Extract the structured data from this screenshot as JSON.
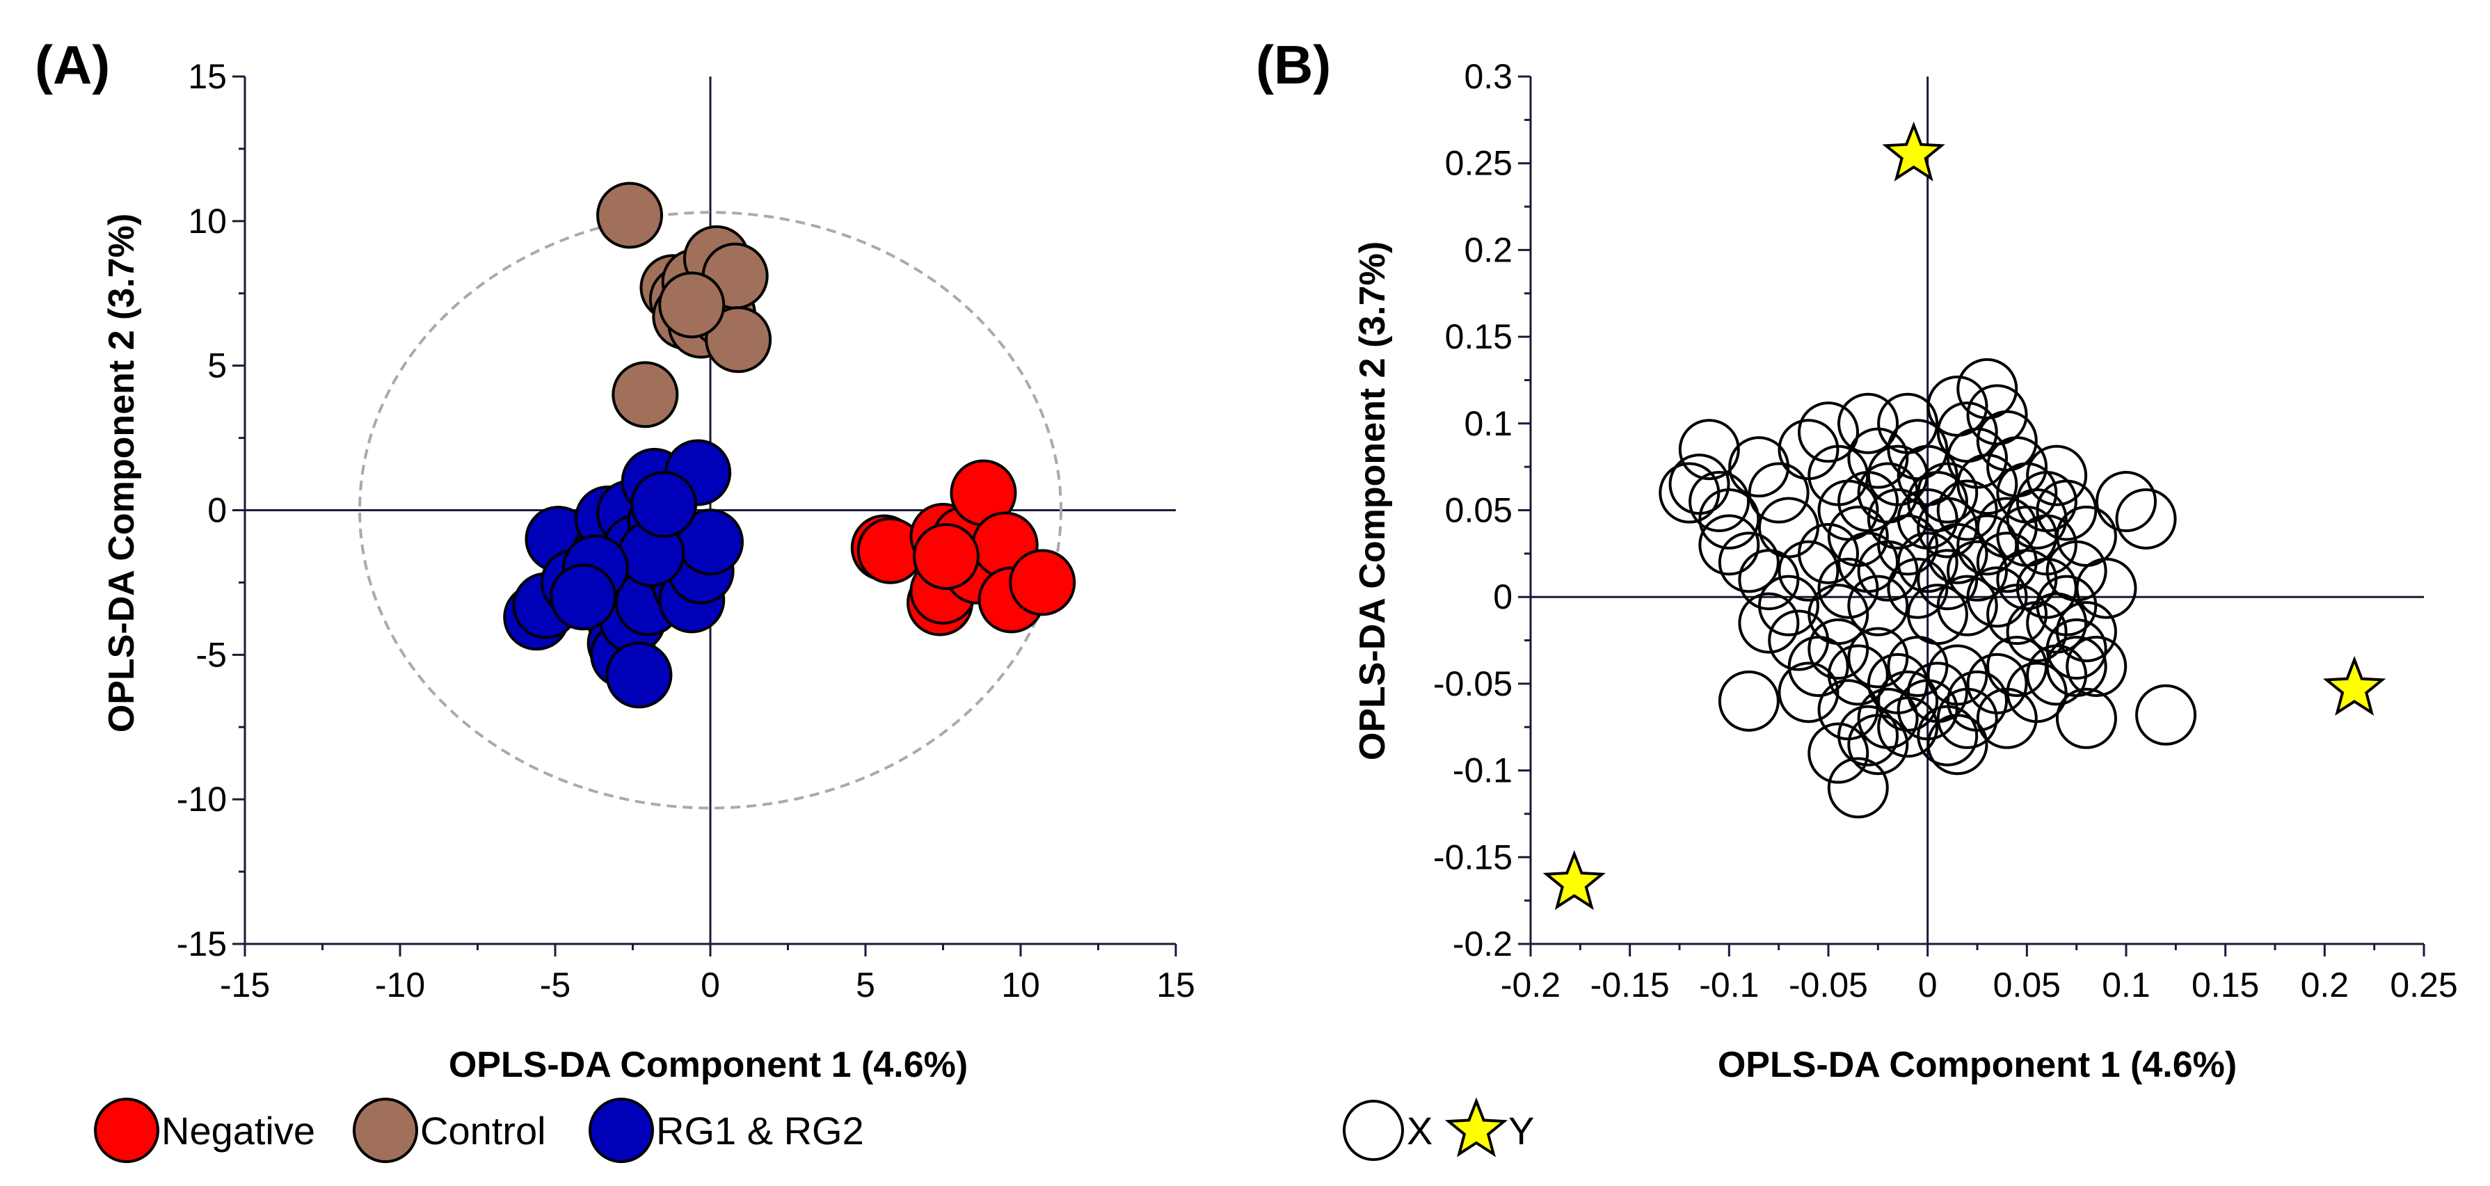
{
  "chart_data": [
    {
      "type": "scatter",
      "panel_label": "(A)",
      "xlabel": "OPLS-DA Component 1 (4.6%)",
      "ylabel": "OPLS-DA Component 2 (3.7%)",
      "xlim": [
        -15,
        15
      ],
      "ylim": [
        -15,
        15
      ],
      "xticks": [
        -15,
        -10,
        -5,
        0,
        5,
        10,
        15
      ],
      "yticks": [
        -15,
        -10,
        -5,
        0,
        5,
        10,
        15
      ],
      "xtick_labels": [
        "-15",
        "-10",
        "-5",
        "0",
        "5",
        "10",
        "15"
      ],
      "ytick_labels": [
        "-15",
        "-10",
        "-5",
        "0",
        "5",
        "10",
        "15"
      ],
      "ellipse": {
        "cx": 0,
        "cy": 0,
        "rx": 11.3,
        "ry": 10.3,
        "style": "dashed",
        "color": "#aaaaaa"
      },
      "series": [
        {
          "name": "Negative",
          "color": "#ff0000",
          "points": [
            [
              5.6,
              -1.3
            ],
            [
              5.8,
              -1.4
            ],
            [
              7.4,
              -3.2
            ],
            [
              7.5,
              -2.8
            ],
            [
              7.5,
              -0.9
            ],
            [
              8.2,
              -1.0
            ],
            [
              8.6,
              -2.1
            ],
            [
              8.8,
              0.6
            ],
            [
              9.5,
              -1.2
            ],
            [
              9.7,
              -3.1
            ],
            [
              10.7,
              -2.5
            ],
            [
              7.6,
              -1.6
            ]
          ]
        },
        {
          "name": "Control",
          "color": "#a0705a",
          "points": [
            [
              -2.6,
              10.2
            ],
            [
              -1.2,
              7.7
            ],
            [
              -0.9,
              7.3
            ],
            [
              -0.8,
              6.7
            ],
            [
              -0.5,
              7.9
            ],
            [
              -0.3,
              6.4
            ],
            [
              0.2,
              8.7
            ],
            [
              0.4,
              6.8
            ],
            [
              0.8,
              8.1
            ],
            [
              0.9,
              5.9
            ],
            [
              -2.1,
              4.0
            ],
            [
              -0.6,
              7.1
            ]
          ]
        },
        {
          "name": "RG1 & RG2",
          "color": "#0000b8",
          "points": [
            [
              -5.6,
              -3.7
            ],
            [
              -5.3,
              -3.3
            ],
            [
              -4.9,
              -1.0
            ],
            [
              -4.4,
              -2.5
            ],
            [
              -3.4,
              -1.5
            ],
            [
              -3.3,
              -0.3
            ],
            [
              -3.1,
              -2.8
            ],
            [
              -3.0,
              -3.6
            ],
            [
              -2.9,
              -4.6
            ],
            [
              -2.8,
              -5.0
            ],
            [
              -2.7,
              -2.2
            ],
            [
              -2.6,
              -0.1
            ],
            [
              -2.5,
              -3.8
            ],
            [
              -2.4,
              -1.3
            ],
            [
              -2.3,
              -5.7
            ],
            [
              -2.2,
              -2.6
            ],
            [
              -2.0,
              -3.2
            ],
            [
              -1.8,
              1.0
            ],
            [
              -1.6,
              -0.4
            ],
            [
              -1.3,
              -0.9
            ],
            [
              -1.1,
              -2.0
            ],
            [
              -0.8,
              -2.6
            ],
            [
              -0.6,
              -3.1
            ],
            [
              -0.4,
              1.3
            ],
            [
              -0.3,
              -2.1
            ],
            [
              0.0,
              -1.1
            ],
            [
              -1.9,
              -1.5
            ],
            [
              -3.7,
              -2.0
            ],
            [
              -4.1,
              -3.0
            ],
            [
              -1.5,
              0.2
            ]
          ]
        }
      ],
      "legend": [
        {
          "label": "Negative",
          "color": "#ff0000",
          "marker": "circle"
        },
        {
          "label": "Control",
          "color": "#a0705a",
          "marker": "circle"
        },
        {
          "label": "RG1 & RG2",
          "color": "#0000b8",
          "marker": "circle"
        }
      ]
    },
    {
      "type": "scatter",
      "panel_label": "(B)",
      "xlabel": "OPLS-DA Component 1 (4.6%)",
      "ylabel": "OPLS-DA Component 2 (3.7%)",
      "xlim": [
        -0.2,
        0.25
      ],
      "ylim": [
        -0.2,
        0.3
      ],
      "xticks": [
        -0.2,
        -0.15,
        -0.1,
        -0.05,
        0,
        0.05,
        0.1,
        0.15,
        0.2,
        0.25
      ],
      "yticks": [
        -0.2,
        -0.15,
        -0.1,
        -0.05,
        0,
        0.05,
        0.1,
        0.15,
        0.2,
        0.25,
        0.3
      ],
      "xtick_labels": [
        "-0.2",
        "-0.15",
        "-0.1",
        "-0.05",
        "0",
        "0.05",
        "0.1",
        "0.15",
        "0.2",
        "0.25"
      ],
      "ytick_labels": [
        "-0.2",
        "-0.15",
        "-0.1",
        "-0.05",
        "0",
        "0.05",
        "0.1",
        "0.15",
        "0.2",
        "0.25",
        "0.3"
      ],
      "series": [
        {
          "name": "X",
          "marker": "open-circle",
          "color": "#000000",
          "points": [
            [
              -0.11,
              0.085
            ],
            [
              -0.115,
              0.065
            ],
            [
              -0.105,
              0.055
            ],
            [
              -0.1,
              0.045
            ],
            [
              -0.085,
              0.075
            ],
            [
              -0.075,
              0.06
            ],
            [
              -0.07,
              0.04
            ],
            [
              -0.06,
              0.085
            ],
            [
              -0.05,
              0.095
            ],
            [
              -0.045,
              0.07
            ],
            [
              -0.04,
              0.05
            ],
            [
              -0.035,
              0.035
            ],
            [
              -0.03,
              0.1
            ],
            [
              -0.025,
              0.08
            ],
            [
              -0.02,
              0.06
            ],
            [
              -0.015,
              0.045
            ],
            [
              -0.01,
              0.1
            ],
            [
              -0.005,
              0.085
            ],
            [
              0.0,
              0.07
            ],
            [
              0.005,
              0.055
            ],
            [
              0.01,
              0.04
            ],
            [
              0.015,
              0.11
            ],
            [
              0.02,
              0.095
            ],
            [
              0.025,
              0.08
            ],
            [
              0.03,
              0.12
            ],
            [
              0.035,
              0.105
            ],
            [
              0.04,
              0.09
            ],
            [
              0.045,
              0.075
            ],
            [
              0.05,
              0.06
            ],
            [
              0.055,
              0.045
            ],
            [
              0.06,
              0.03
            ],
            [
              0.065,
              0.07
            ],
            [
              0.07,
              0.05
            ],
            [
              0.08,
              0.035
            ],
            [
              0.075,
              0.015
            ],
            [
              -0.09,
              0.02
            ],
            [
              -0.08,
              0.01
            ],
            [
              -0.07,
              -0.005
            ],
            [
              -0.06,
              0.015
            ],
            [
              -0.05,
              0.025
            ],
            [
              -0.045,
              -0.01
            ],
            [
              -0.04,
              0.005
            ],
            [
              -0.03,
              0.02
            ],
            [
              -0.025,
              -0.005
            ],
            [
              -0.02,
              0.015
            ],
            [
              -0.01,
              0.03
            ],
            [
              -0.005,
              0.005
            ],
            [
              0.0,
              0.02
            ],
            [
              0.005,
              -0.01
            ],
            [
              0.01,
              0.01
            ],
            [
              0.015,
              0.025
            ],
            [
              0.02,
              -0.005
            ],
            [
              0.025,
              0.015
            ],
            [
              0.03,
              0.03
            ],
            [
              0.035,
              0.0
            ],
            [
              0.04,
              0.02
            ],
            [
              0.045,
              -0.01
            ],
            [
              0.05,
              0.01
            ],
            [
              0.055,
              -0.02
            ],
            [
              0.06,
              0.005
            ],
            [
              0.065,
              -0.015
            ],
            [
              0.07,
              -0.005
            ],
            [
              0.075,
              -0.03
            ],
            [
              0.08,
              -0.02
            ],
            [
              -0.08,
              -0.015
            ],
            [
              -0.065,
              -0.025
            ],
            [
              -0.055,
              -0.04
            ],
            [
              -0.045,
              -0.03
            ],
            [
              -0.035,
              -0.045
            ],
            [
              -0.025,
              -0.035
            ],
            [
              -0.015,
              -0.05
            ],
            [
              -0.005,
              -0.04
            ],
            [
              0.005,
              -0.055
            ],
            [
              0.015,
              -0.045
            ],
            [
              0.025,
              -0.06
            ],
            [
              0.035,
              -0.05
            ],
            [
              0.045,
              -0.04
            ],
            [
              0.055,
              -0.055
            ],
            [
              0.065,
              -0.045
            ],
            [
              0.075,
              -0.04
            ],
            [
              -0.06,
              -0.055
            ],
            [
              -0.04,
              -0.065
            ],
            [
              -0.03,
              -0.08
            ],
            [
              -0.02,
              -0.07
            ],
            [
              -0.01,
              -0.075
            ],
            [
              0.0,
              -0.065
            ],
            [
              0.01,
              -0.08
            ],
            [
              0.02,
              -0.07
            ],
            [
              0.04,
              -0.07
            ],
            [
              -0.045,
              -0.09
            ],
            [
              -0.035,
              -0.11
            ],
            [
              -0.025,
              -0.085
            ],
            [
              -0.01,
              -0.06
            ],
            [
              0.015,
              -0.085
            ],
            [
              -0.09,
              -0.06
            ],
            [
              -0.1,
              0.03
            ],
            [
              0.1,
              0.055
            ],
            [
              0.11,
              0.045
            ],
            [
              0.08,
              -0.07
            ],
            [
              0.12,
              -0.068
            ],
            [
              0.085,
              -0.04
            ],
            [
              0.09,
              0.005
            ],
            [
              -0.12,
              0.06
            ],
            [
              0.0,
              0.045
            ],
            [
              0.01,
              0.06
            ],
            [
              0.02,
              0.05
            ],
            [
              0.03,
              0.065
            ],
            [
              -0.015,
              0.07
            ],
            [
              -0.03,
              0.055
            ],
            [
              0.04,
              0.04
            ],
            [
              0.05,
              0.035
            ],
            [
              0.06,
              0.055
            ]
          ]
        },
        {
          "name": "Y",
          "marker": "star",
          "color": "#ffff00",
          "points": [
            [
              -0.007,
              0.255
            ],
            [
              0.215,
              -0.053
            ],
            [
              -0.178,
              -0.165
            ]
          ]
        }
      ],
      "legend": [
        {
          "label": "X",
          "color": "#ffffff",
          "marker": "open-circle"
        },
        {
          "label": "Y",
          "color": "#ffff00",
          "marker": "star"
        }
      ]
    }
  ]
}
